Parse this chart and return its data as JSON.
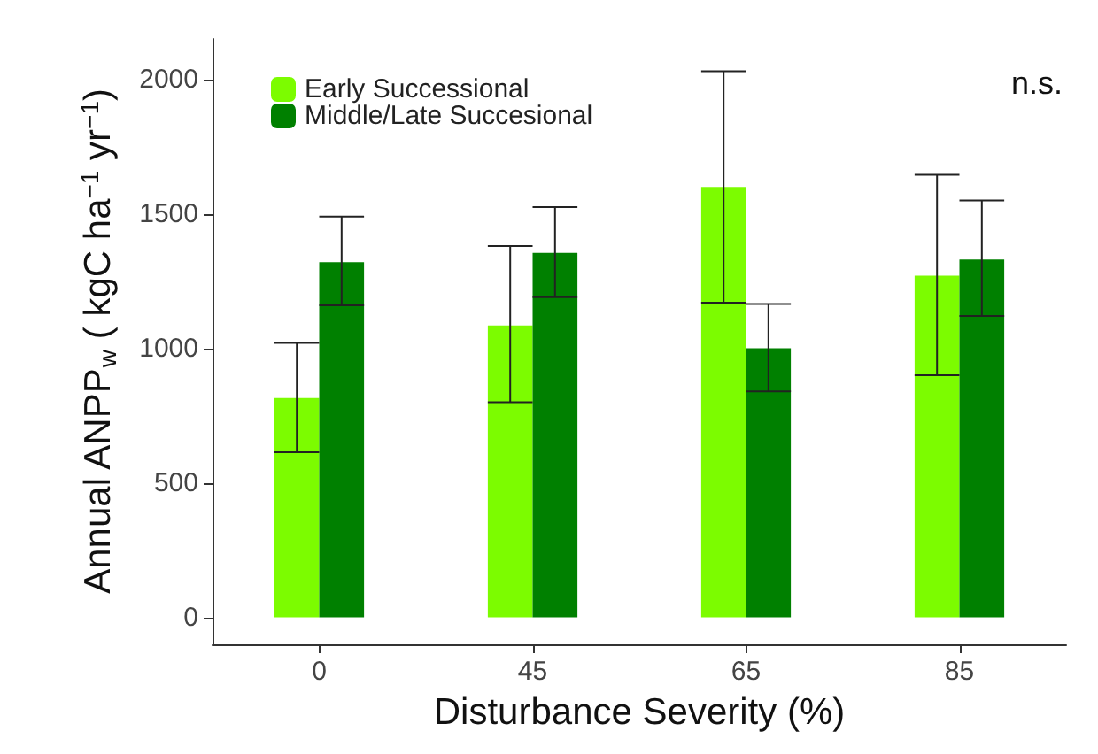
{
  "chart_data": {
    "type": "bar",
    "xlabel": "Disturbance Severity (%)",
    "ylabel": "Annual ANPP$_{w}$ ( kgC ha$^{−1}$ yr$^{−1}$)",
    "categories": [
      "0",
      "45",
      "65",
      "85"
    ],
    "series": [
      {
        "name": "Early Successional",
        "color": "#7cfc00",
        "values": [
          815,
          1085,
          1600,
          1270
        ],
        "errors": [
          [
            614,
            1020
          ],
          [
            800,
            1380
          ],
          [
            1170,
            2030
          ],
          [
            900,
            1645
          ]
        ]
      },
      {
        "name": "Middle/Late Succesional",
        "color": "#008000",
        "values": [
          1320,
          1355,
          1000,
          1330
        ],
        "errors": [
          [
            1160,
            1490
          ],
          [
            1190,
            1525
          ],
          [
            840,
            1165
          ],
          [
            1120,
            1550
          ]
        ]
      }
    ],
    "ylim": [
      -100,
      2150
    ],
    "yticks": [
      0,
      500,
      1000,
      1500,
      2000
    ],
    "grid": false,
    "legend": "top left",
    "annotations": [
      "n.s."
    ]
  }
}
